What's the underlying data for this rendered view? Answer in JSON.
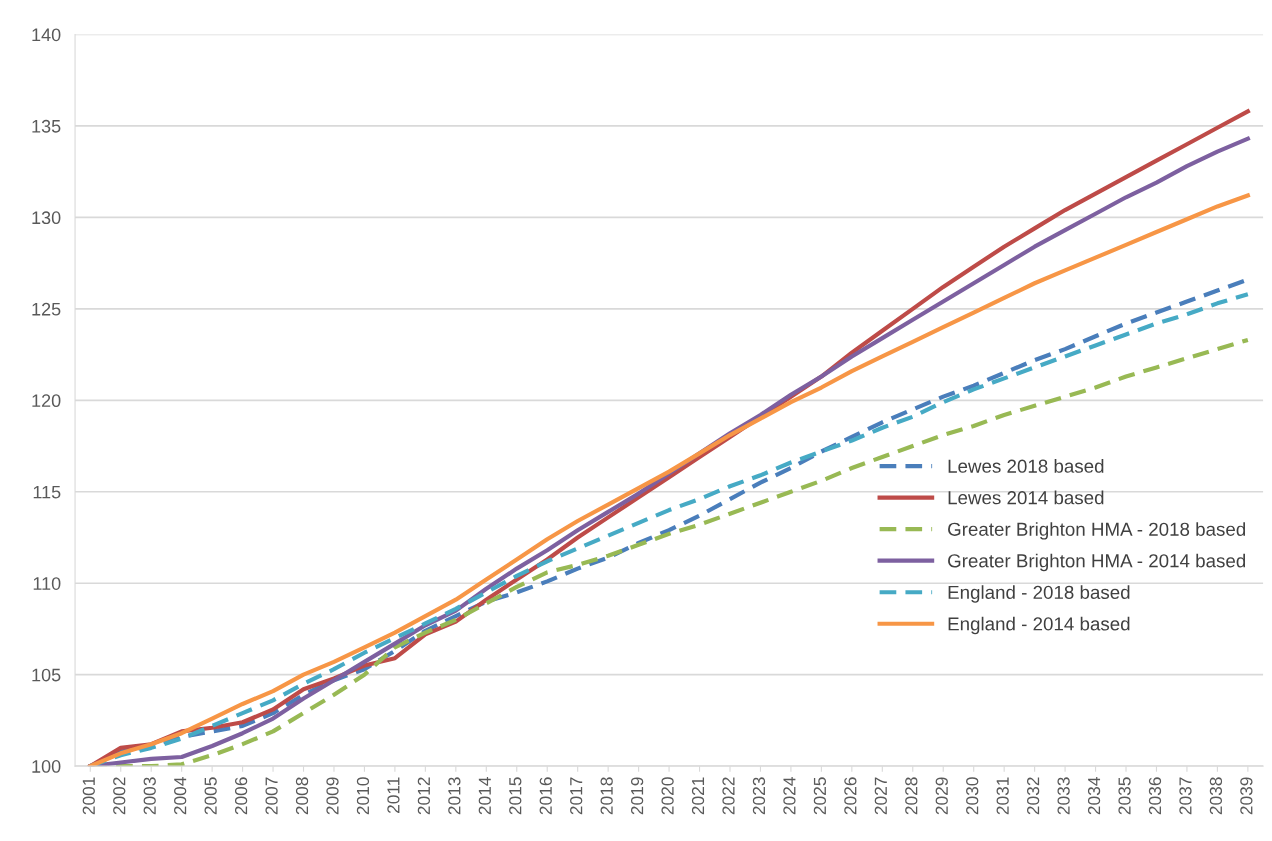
{
  "chart_data": {
    "type": "line",
    "categories": [
      "2001",
      "2002",
      "2003",
      "2004",
      "2005",
      "2006",
      "2007",
      "2008",
      "2009",
      "2010",
      "2011",
      "2012",
      "2013",
      "2014",
      "2015",
      "2016",
      "2017",
      "2018",
      "2019",
      "2020",
      "2021",
      "2022",
      "2023",
      "2024",
      "2025",
      "2026",
      "2027",
      "2028",
      "2029",
      "2030",
      "2031",
      "2032",
      "2033",
      "2034",
      "2035",
      "2036",
      "2037",
      "2038",
      "2039"
    ],
    "ylim": [
      100,
      140
    ],
    "yticks": [
      100,
      105,
      110,
      115,
      120,
      125,
      130,
      135,
      140
    ],
    "grid": "y",
    "legend": "right",
    "marker": "none",
    "series": [
      {
        "name": "Lewes 2018 based",
        "color": "#4a7ebb",
        "line_style": "dashed",
        "values": [
          100,
          100.8,
          101.1,
          101.6,
          101.9,
          102.2,
          102.9,
          103.9,
          104.7,
          105.3,
          106.3,
          107.4,
          108.2,
          109.0,
          109.5,
          110.1,
          110.8,
          111.4,
          112.2,
          112.9,
          113.7,
          114.6,
          115.5,
          116.3,
          117.2,
          118.0,
          118.8,
          119.5,
          120.2,
          120.8,
          121.5,
          122.2,
          122.8,
          123.5,
          124.2,
          124.8,
          125.4,
          126.0,
          126.6
        ]
      },
      {
        "name": "Lewes 2014 based",
        "color": "#be4b48",
        "line_style": "solid",
        "values": [
          100,
          101.0,
          101.2,
          101.9,
          102.1,
          102.4,
          103.1,
          104.2,
          104.8,
          105.5,
          105.9,
          107.2,
          107.9,
          109.1,
          110.2,
          111.3,
          112.5,
          113.6,
          114.7,
          115.8,
          116.9,
          118.0,
          119.1,
          120.2,
          121.3,
          122.6,
          123.8,
          125.0,
          126.2,
          127.3,
          128.4,
          129.4,
          130.4,
          131.3,
          132.2,
          133.1,
          134.0,
          134.9,
          135.8
        ]
      },
      {
        "name": "Greater Brighton HMA - 2018 based",
        "color": "#98b954",
        "line_style": "dashed",
        "values": [
          100,
          100.0,
          100.0,
          100.1,
          100.6,
          101.2,
          101.9,
          102.9,
          103.9,
          105.0,
          106.5,
          107.3,
          108.0,
          108.9,
          109.8,
          110.6,
          111.0,
          111.5,
          112.1,
          112.7,
          113.2,
          113.8,
          114.4,
          115.0,
          115.6,
          116.3,
          116.9,
          117.5,
          118.1,
          118.6,
          119.2,
          119.7,
          120.2,
          120.7,
          121.3,
          121.8,
          122.3,
          122.8,
          123.3
        ]
      },
      {
        "name": "Greater Brighton HMA - 2014 based",
        "color": "#7d60a0",
        "line_style": "solid",
        "values": [
          100,
          100.2,
          100.4,
          100.5,
          101.1,
          101.8,
          102.6,
          103.7,
          104.7,
          105.7,
          106.7,
          107.7,
          108.5,
          109.7,
          110.8,
          111.8,
          112.9,
          113.9,
          114.9,
          116.0,
          117.1,
          118.2,
          119.2,
          120.3,
          121.3,
          122.4,
          123.4,
          124.4,
          125.4,
          126.4,
          127.4,
          128.4,
          129.3,
          130.2,
          131.1,
          131.9,
          132.8,
          133.6,
          134.3
        ]
      },
      {
        "name": "England - 2018 based",
        "color": "#46aac5",
        "line_style": "dashed",
        "values": [
          100,
          100.6,
          101.0,
          101.5,
          102.2,
          102.9,
          103.6,
          104.5,
          105.3,
          106.2,
          107.0,
          107.8,
          108.6,
          109.5,
          110.4,
          111.2,
          111.9,
          112.6,
          113.3,
          114.0,
          114.6,
          115.3,
          115.9,
          116.6,
          117.2,
          117.8,
          118.5,
          119.1,
          119.9,
          120.6,
          121.2,
          121.8,
          122.4,
          123.0,
          123.6,
          124.2,
          124.7,
          125.3,
          125.8
        ]
      },
      {
        "name": "England - 2014 based",
        "color": "#f79646",
        "line_style": "solid",
        "values": [
          100,
          100.7,
          101.2,
          101.8,
          102.6,
          103.4,
          104.1,
          105.0,
          105.7,
          106.5,
          107.3,
          108.2,
          109.1,
          110.2,
          111.3,
          112.4,
          113.4,
          114.3,
          115.2,
          116.1,
          117.1,
          118.1,
          119.0,
          119.9,
          120.7,
          121.6,
          122.4,
          123.2,
          124.0,
          124.8,
          125.6,
          126.4,
          127.1,
          127.8,
          128.5,
          129.2,
          129.9,
          130.6,
          131.2
        ]
      }
    ]
  }
}
